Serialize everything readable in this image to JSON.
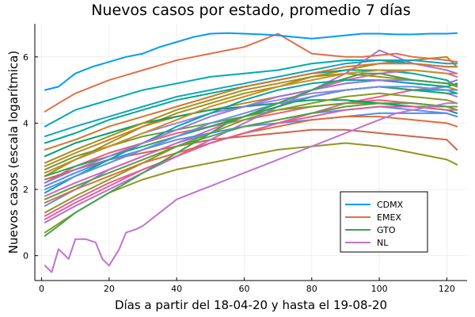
{
  "chart_data": {
    "type": "line",
    "title": "Nuevos casos por estado, promedio 7 días",
    "xlabel": "Días a partir del 18-04-20 y hasta el 19-08-20",
    "ylabel": "Nuevos casos (escala logarítmica)",
    "xlim": [
      -2,
      126
    ],
    "ylim": [
      -0.75,
      7.0
    ],
    "xticks": [
      0,
      20,
      40,
      60,
      80,
      100,
      120
    ],
    "yticks": [
      0,
      2,
      4,
      6
    ],
    "grid": true,
    "legend_position": "bottom-right",
    "series": [
      {
        "name": "CDMX",
        "color": "#009AFA",
        "x": [
          1,
          5,
          10,
          15,
          20,
          25,
          30,
          35,
          40,
          45,
          50,
          55,
          60,
          65,
          70,
          75,
          80,
          85,
          90,
          95,
          100,
          105,
          110,
          115,
          120,
          123
        ],
        "y": [
          5.0,
          5.1,
          5.5,
          5.7,
          5.85,
          6.0,
          6.1,
          6.3,
          6.45,
          6.6,
          6.7,
          6.72,
          6.7,
          6.68,
          6.65,
          6.6,
          6.55,
          6.6,
          6.65,
          6.7,
          6.7,
          6.68,
          6.68,
          6.7,
          6.7,
          6.72
        ]
      },
      {
        "name": "EMEX",
        "color": "#E26F46",
        "x": [
          1,
          5,
          10,
          15,
          20,
          25,
          30,
          35,
          40,
          45,
          50,
          55,
          60,
          65,
          70,
          75,
          80,
          85,
          90,
          95,
          100,
          105,
          110,
          115,
          120,
          123
        ],
        "y": [
          4.35,
          4.6,
          4.9,
          5.1,
          5.3,
          5.45,
          5.6,
          5.75,
          5.9,
          6.0,
          6.1,
          6.2,
          6.3,
          6.5,
          6.7,
          6.4,
          6.1,
          6.05,
          6.0,
          6.0,
          6.05,
          6.1,
          6.0,
          5.95,
          5.9,
          5.85
        ]
      },
      {
        "name": "GTO",
        "color": "#3DA44D",
        "x": [
          1,
          5,
          10,
          15,
          20,
          25,
          30,
          35,
          40,
          45,
          50,
          55,
          60,
          65,
          70,
          75,
          80,
          85,
          90,
          95,
          100,
          105,
          110,
          115,
          120,
          123
        ],
        "y": [
          0.6,
          0.9,
          1.3,
          1.6,
          1.9,
          2.2,
          2.5,
          2.8,
          3.1,
          3.4,
          3.7,
          4.0,
          4.2,
          4.4,
          4.6,
          4.8,
          5.0,
          5.2,
          5.35,
          5.5,
          5.5,
          5.4,
          5.3,
          5.25,
          5.2,
          5.15
        ]
      },
      {
        "name": "NL",
        "color": "#C271D2",
        "x": [
          1,
          3,
          5,
          8,
          10,
          13,
          16,
          18,
          20,
          23,
          25,
          28,
          30,
          35,
          40,
          45,
          50,
          55,
          60,
          65,
          70,
          75,
          80,
          85,
          90,
          95,
          100,
          105,
          110,
          115,
          120,
          123
        ],
        "y": [
          -0.3,
          -0.5,
          0.2,
          -0.1,
          0.5,
          0.5,
          0.4,
          -0.1,
          -0.3,
          0.2,
          0.7,
          0.8,
          0.9,
          1.3,
          1.7,
          1.9,
          2.1,
          2.3,
          2.5,
          2.7,
          2.9,
          3.1,
          3.3,
          3.5,
          3.7,
          3.9,
          4.1,
          4.3,
          4.4,
          4.5,
          4.6,
          4.6
        ]
      },
      {
        "color": "#AC8D18",
        "x": [
          1,
          10,
          20,
          30,
          40,
          50,
          60,
          70,
          80,
          90,
          100,
          110,
          120,
          123
        ],
        "y": [
          2.4,
          2.9,
          3.4,
          3.9,
          4.3,
          4.6,
          4.9,
          5.1,
          5.4,
          5.6,
          5.8,
          5.9,
          6.0,
          5.7
        ]
      },
      {
        "color": "#00A9AD",
        "x": [
          1,
          10,
          20,
          30,
          40,
          50,
          60,
          70,
          80,
          90,
          100,
          110,
          120,
          123
        ],
        "y": [
          3.9,
          4.4,
          4.7,
          5.0,
          5.2,
          5.4,
          5.5,
          5.6,
          5.8,
          5.9,
          5.9,
          5.8,
          5.7,
          5.7
        ]
      },
      {
        "color": "#ED5D92",
        "x": [
          1,
          10,
          20,
          30,
          40,
          50,
          60,
          70,
          80,
          90,
          100,
          110,
          120,
          123
        ],
        "y": [
          1.1,
          1.6,
          2.1,
          2.6,
          3.0,
          3.4,
          3.7,
          4.0,
          4.3,
          4.6,
          4.8,
          5.0,
          5.1,
          5.0
        ]
      },
      {
        "color": "#C68225",
        "x": [
          1,
          10,
          20,
          30,
          40,
          50,
          60,
          70,
          80,
          90,
          100,
          110,
          120,
          123
        ],
        "y": [
          2.7,
          3.1,
          3.5,
          3.9,
          4.2,
          4.4,
          4.6,
          4.8,
          5.0,
          5.2,
          5.3,
          5.2,
          5.1,
          5.0
        ]
      },
      {
        "color": "#00A98D",
        "x": [
          1,
          10,
          20,
          30,
          40,
          50,
          60,
          70,
          80,
          90,
          100,
          110,
          120,
          123
        ],
        "y": [
          3.4,
          3.7,
          4.1,
          4.4,
          4.7,
          4.9,
          5.1,
          5.3,
          5.5,
          5.6,
          5.6,
          5.5,
          5.3,
          5.1
        ]
      },
      {
        "color": "#8E971D",
        "x": [
          1,
          10,
          20,
          30,
          40,
          50,
          60,
          70,
          80,
          90,
          100,
          110,
          120,
          123
        ],
        "y": [
          0.7,
          1.3,
          1.9,
          2.3,
          2.6,
          2.8,
          3.0,
          3.2,
          3.3,
          3.4,
          3.3,
          3.1,
          2.9,
          2.75
        ]
      },
      {
        "color": "#00A8CB",
        "x": [
          1,
          10,
          20,
          30,
          40,
          50,
          60,
          70,
          80,
          90,
          100,
          110,
          120,
          123
        ],
        "y": [
          2.0,
          2.4,
          2.8,
          3.2,
          3.6,
          3.9,
          4.2,
          4.5,
          4.8,
          5.0,
          5.1,
          5.0,
          5.0,
          4.9
        ]
      },
      {
        "color": "#9B7FE9",
        "x": [
          1,
          10,
          20,
          30,
          40,
          50,
          60,
          70,
          80,
          90,
          100,
          110,
          120,
          123
        ],
        "y": [
          2.5,
          2.9,
          3.3,
          3.7,
          4.0,
          4.3,
          4.5,
          4.7,
          4.9,
          5.0,
          5.1,
          5.0,
          4.9,
          4.8
        ]
      },
      {
        "color": "#618DF6",
        "x": [
          1,
          10,
          20,
          30,
          40,
          50,
          60,
          70,
          80,
          90,
          100,
          110,
          120,
          123
        ],
        "y": [
          1.5,
          2.0,
          2.6,
          3.0,
          3.4,
          3.7,
          3.9,
          4.1,
          4.3,
          4.4,
          4.5,
          4.4,
          4.3,
          4.2
        ]
      },
      {
        "color": "#F05F73",
        "x": [
          1,
          10,
          20,
          30,
          40,
          50,
          60,
          70,
          80,
          90,
          100,
          110,
          120,
          123
        ],
        "y": [
          2.2,
          2.7,
          3.1,
          3.4,
          3.7,
          3.9,
          4.1,
          4.3,
          4.5,
          4.6,
          4.7,
          4.6,
          4.5,
          4.4
        ]
      },
      {
        "color": "#DC63BB",
        "x": [
          1,
          10,
          20,
          30,
          40,
          50,
          60,
          70,
          80,
          90,
          100,
          110,
          120,
          123
        ],
        "y": [
          1.8,
          2.2,
          2.6,
          3.0,
          3.4,
          3.8,
          4.2,
          4.6,
          5.0,
          5.3,
          5.5,
          5.6,
          5.5,
          5.4
        ]
      },
      {
        "color": "#6B9E32",
        "x": [
          1,
          10,
          20,
          30,
          40,
          50,
          60,
          70,
          80,
          90,
          100,
          110,
          120,
          123
        ],
        "y": [
          2.6,
          3.0,
          3.3,
          3.6,
          3.8,
          4.0,
          4.2,
          4.4,
          4.5,
          4.6,
          4.6,
          4.5,
          4.5,
          4.4
        ]
      },
      {
        "color": "#D0644A",
        "x": [
          1,
          10,
          20,
          30,
          40,
          50,
          60,
          70,
          80,
          90,
          100,
          110,
          120,
          123
        ],
        "y": [
          2.3,
          2.6,
          2.9,
          3.1,
          3.3,
          3.5,
          3.6,
          3.7,
          3.8,
          3.8,
          3.7,
          3.6,
          3.5,
          3.2
        ]
      },
      {
        "color": "#009F6E",
        "x": [
          1,
          10,
          20,
          30,
          40,
          50,
          60,
          70,
          80,
          90,
          100,
          110,
          120,
          123
        ],
        "y": [
          3.0,
          3.4,
          3.7,
          4.0,
          4.2,
          4.4,
          4.5,
          4.6,
          4.7,
          4.7,
          4.6,
          4.5,
          4.4,
          4.3
        ]
      },
      {
        "color": "#889A1E",
        "x": [
          1,
          10,
          20,
          30,
          40,
          50,
          60,
          70,
          80,
          90,
          100,
          110,
          120,
          123
        ],
        "y": [
          1.3,
          1.8,
          2.3,
          2.8,
          3.3,
          3.7,
          4.1,
          4.4,
          4.6,
          4.8,
          4.9,
          4.8,
          4.7,
          4.6
        ]
      },
      {
        "color": "#B26ED2",
        "x": [
          1,
          10,
          20,
          30,
          40,
          50,
          60,
          70,
          80,
          90,
          100,
          110,
          120,
          123
        ],
        "y": [
          1.0,
          1.5,
          2.0,
          2.5,
          3.0,
          3.5,
          4.0,
          4.5,
          5.0,
          5.5,
          6.2,
          5.8,
          5.6,
          5.5
        ]
      },
      {
        "color": "#4F8FEB",
        "x": [
          1,
          10,
          20,
          30,
          40,
          50,
          60,
          70,
          80,
          90,
          100,
          110,
          120,
          123
        ],
        "y": [
          2.1,
          2.5,
          2.9,
          3.2,
          3.5,
          3.7,
          3.9,
          4.0,
          4.1,
          4.2,
          4.3,
          4.3,
          4.3,
          4.2
        ]
      },
      {
        "color": "#E06C3A",
        "x": [
          1,
          10,
          20,
          30,
          40,
          50,
          60,
          70,
          80,
          90,
          100,
          110,
          120,
          123
        ],
        "y": [
          1.6,
          2.0,
          2.4,
          2.8,
          3.1,
          3.4,
          3.7,
          3.9,
          4.1,
          4.2,
          4.2,
          4.1,
          4.0,
          3.9
        ]
      },
      {
        "color": "#24A65A",
        "x": [
          1,
          10,
          20,
          30,
          40,
          50,
          60,
          70,
          80,
          90,
          100,
          110,
          120,
          123
        ],
        "y": [
          2.4,
          2.7,
          3.0,
          3.3,
          3.6,
          3.9,
          4.2,
          4.5,
          4.8,
          5.0,
          5.1,
          5.0,
          4.9,
          4.9
        ]
      },
      {
        "color": "#00A5A1",
        "x": [
          1,
          10,
          20,
          30,
          40,
          50,
          60,
          70,
          80,
          90,
          100,
          110,
          120,
          123
        ],
        "y": [
          1.9,
          2.4,
          2.9,
          3.4,
          3.9,
          4.3,
          4.7,
          5.0,
          5.2,
          5.3,
          5.3,
          5.2,
          5.1,
          5.2
        ]
      },
      {
        "color": "#A38F1C",
        "x": [
          1,
          10,
          20,
          30,
          40,
          50,
          60,
          70,
          80,
          90,
          100,
          110,
          120,
          123
        ],
        "y": [
          2.8,
          3.2,
          3.6,
          4.0,
          4.4,
          4.7,
          5.0,
          5.2,
          5.4,
          5.5,
          5.4,
          5.3,
          5.2,
          5.1
        ]
      },
      {
        "color": "#E15E96",
        "x": [
          1,
          10,
          20,
          30,
          40,
          50,
          60,
          70,
          80,
          90,
          100,
          110,
          120,
          123
        ],
        "y": [
          1.2,
          1.7,
          2.2,
          2.6,
          3.0,
          3.4,
          3.7,
          4.0,
          4.2,
          4.4,
          4.5,
          4.5,
          4.4,
          4.4
        ]
      },
      {
        "color": "#6E8FE6",
        "x": [
          1,
          10,
          20,
          30,
          40,
          50,
          60,
          70,
          80,
          90,
          100,
          110,
          120,
          123
        ],
        "y": [
          2.0,
          2.4,
          2.8,
          3.2,
          3.6,
          4.0,
          4.3,
          4.6,
          4.8,
          5.0,
          5.1,
          5.1,
          5.0,
          5.0
        ]
      },
      {
        "color": "#D6752E",
        "x": [
          1,
          10,
          20,
          30,
          40,
          50,
          60,
          70,
          80,
          90,
          100,
          110,
          120,
          123
        ],
        "y": [
          3.2,
          3.5,
          3.9,
          4.2,
          4.5,
          4.8,
          5.1,
          5.3,
          5.5,
          5.7,
          5.8,
          5.8,
          5.7,
          5.7
        ]
      },
      {
        "color": "#55A13A",
        "x": [
          1,
          10,
          20,
          30,
          40,
          50,
          60,
          70,
          80,
          90,
          100,
          110,
          120,
          123
        ],
        "y": [
          1.7,
          2.1,
          2.5,
          2.9,
          3.3,
          3.6,
          3.9,
          4.1,
          4.3,
          4.5,
          4.6,
          4.6,
          4.5,
          4.5
        ]
      },
      {
        "color": "#14A3C1",
        "x": [
          1,
          10,
          20,
          30,
          40,
          50,
          60,
          70,
          80,
          90,
          100,
          110,
          120,
          123
        ],
        "y": [
          3.6,
          3.9,
          4.2,
          4.5,
          4.8,
          5.0,
          5.2,
          5.4,
          5.6,
          5.8,
          5.9,
          5.9,
          5.8,
          5.8
        ]
      },
      {
        "color": "#9777DD",
        "x": [
          1,
          10,
          20,
          30,
          40,
          50,
          60,
          70,
          80,
          90,
          100,
          110,
          120,
          123
        ],
        "y": [
          2.2,
          2.6,
          3.0,
          3.4,
          3.8,
          4.2,
          4.5,
          4.8,
          5.0,
          5.2,
          5.3,
          5.3,
          5.2,
          5.3
        ]
      },
      {
        "color": "#C98F22",
        "x": [
          1,
          10,
          20,
          30,
          40,
          50,
          60,
          70,
          80,
          90,
          100,
          110,
          120,
          123
        ],
        "y": [
          2.5,
          2.9,
          3.3,
          3.7,
          4.1,
          4.5,
          4.8,
          5.1,
          5.3,
          5.5,
          5.6,
          5.6,
          5.5,
          5.5
        ]
      }
    ]
  }
}
